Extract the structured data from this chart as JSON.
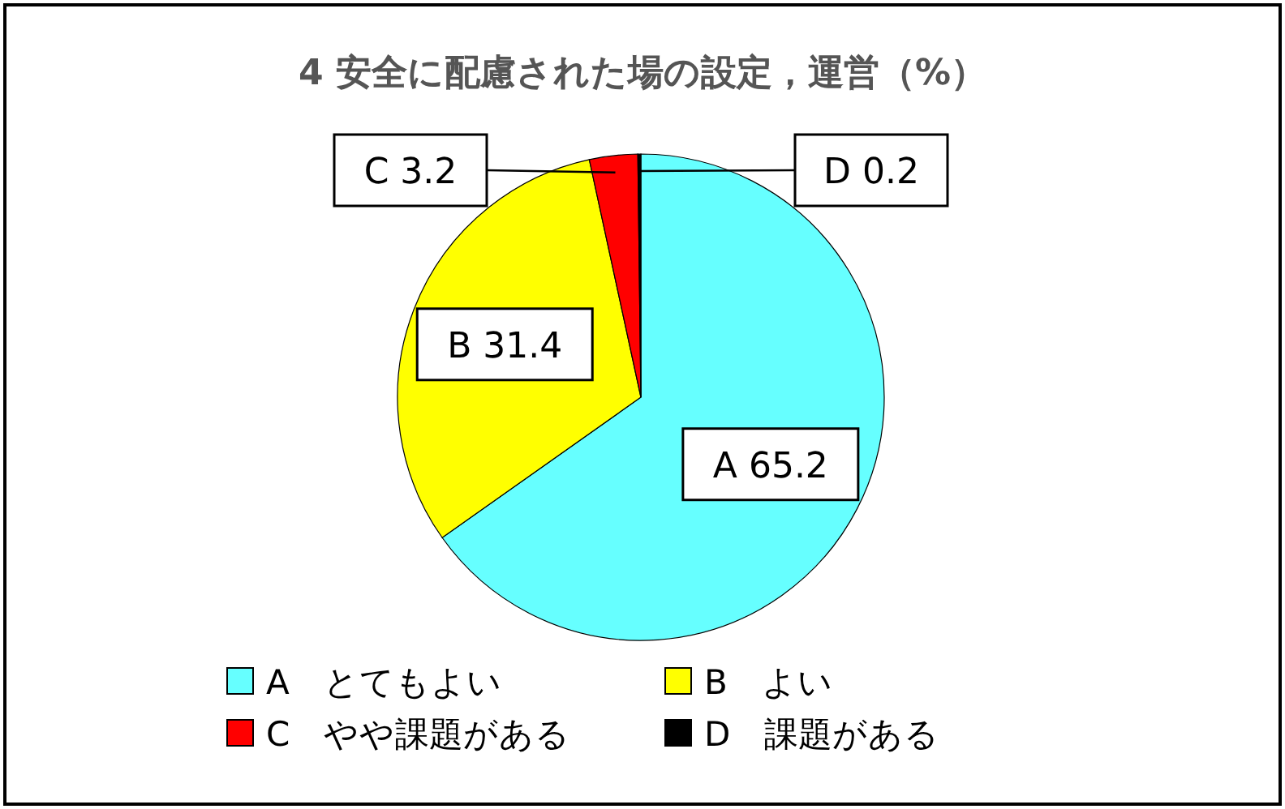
{
  "chart_data": {
    "type": "pie",
    "title": "4 安全に配慮された場の設定，運営（%）",
    "categories": [
      "A　とてもよい",
      "B　よい",
      "C　やや課題がある",
      "D　課題がある"
    ],
    "values": [
      65.2,
      31.4,
      3.2,
      0.2
    ],
    "colors": [
      "#66ffff",
      "#ffff00",
      "#ff0000",
      "#000000"
    ],
    "value_labels": [
      "A 65.2",
      "B 31.4",
      "C 3.2",
      "D 0.2"
    ],
    "legend": "bottom"
  }
}
